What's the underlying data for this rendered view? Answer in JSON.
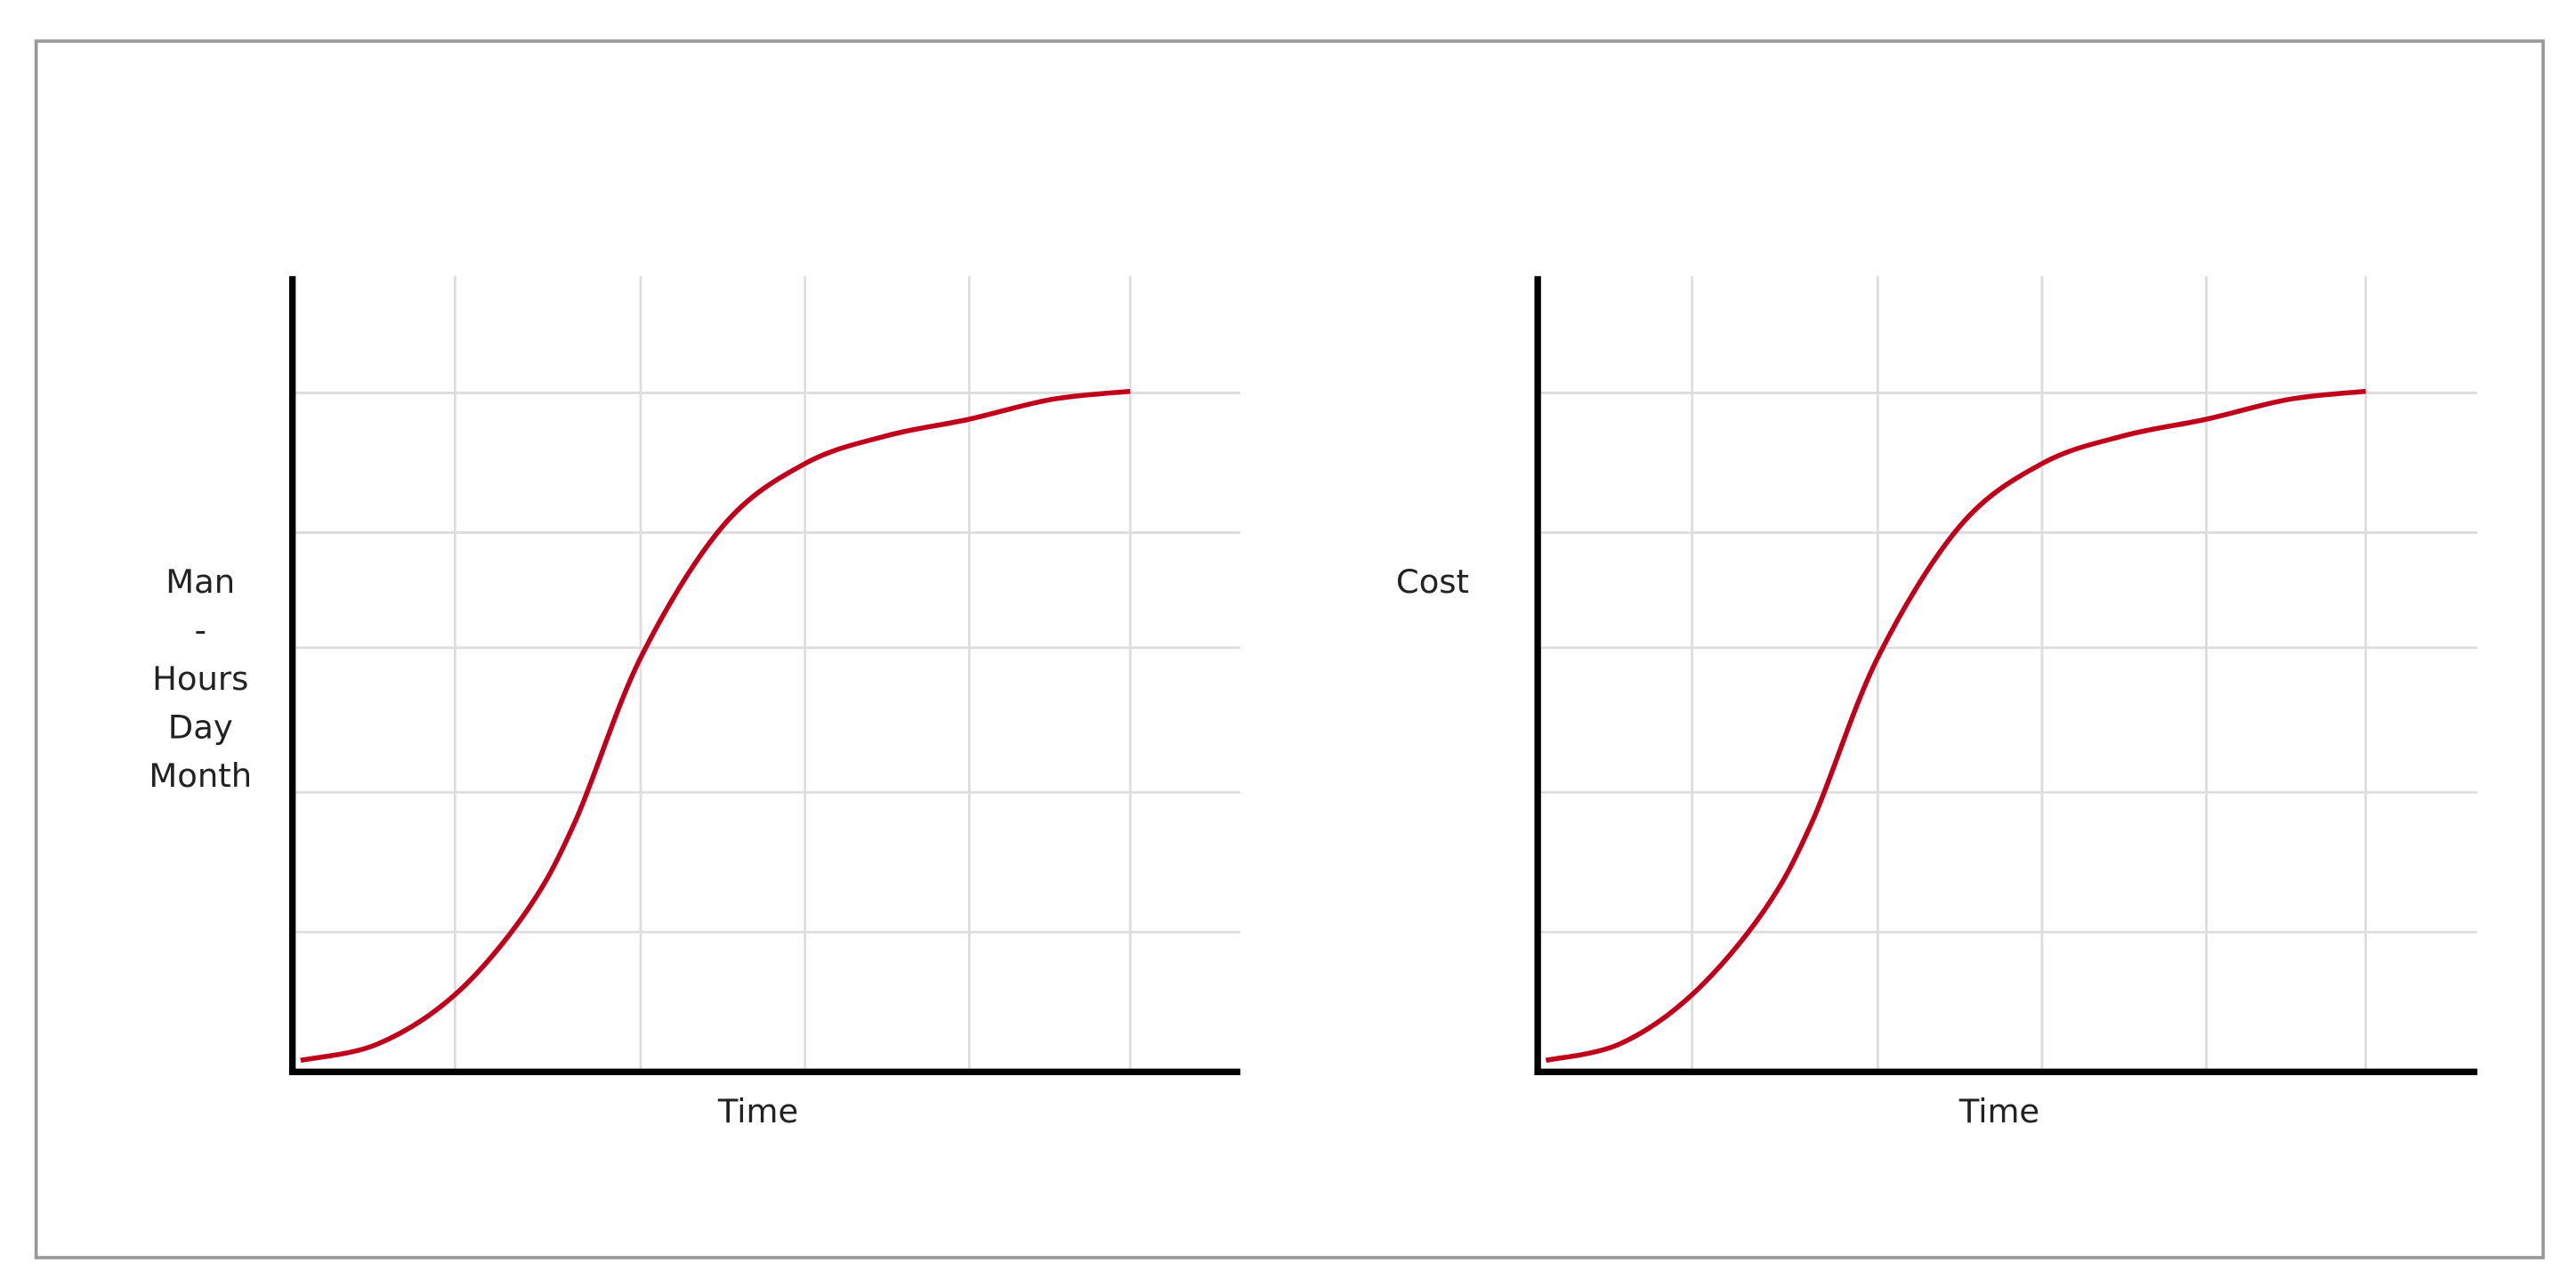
{
  "chart_data": [
    {
      "type": "line",
      "y_label": [
        "Man",
        "-",
        "Hours",
        "Day",
        "Month"
      ],
      "x_label": "Time",
      "x": [
        0.05,
        0.52,
        0.99,
        1.42,
        1.72,
        2.12,
        2.62,
        3.12,
        3.62,
        4.12,
        4.62,
        5.1
      ],
      "series": [
        {
          "color": "#c0001a",
          "values": [
            0.07,
            0.17,
            0.47,
            0.97,
            1.52,
            2.52,
            3.32,
            3.7,
            3.87,
            3.97,
            4.09,
            4.14
          ]
        }
      ],
      "xlim": [
        0,
        5.77
      ],
      "xticks": [
        0.99,
        2.12,
        3.12,
        4.12,
        5.1
      ],
      "ylim": [
        0,
        4.84
      ],
      "yticks": [
        0.85,
        1.7,
        2.58,
        3.28,
        4.13
      ],
      "grid": true
    },
    {
      "type": "line",
      "y_label": [
        "Cost"
      ],
      "x_label": "Time",
      "x": [
        0.05,
        0.5,
        0.94,
        1.37,
        1.67,
        2.07,
        2.57,
        3.07,
        3.57,
        4.07,
        4.57,
        5.04
      ],
      "series": [
        {
          "color": "#c0001a",
          "values": [
            0.07,
            0.17,
            0.47,
            0.97,
            1.52,
            2.52,
            3.32,
            3.7,
            3.87,
            3.97,
            4.09,
            4.14
          ]
        }
      ],
      "xlim": [
        0,
        5.72
      ],
      "xticks": [
        0.94,
        2.07,
        3.07,
        4.07,
        5.04
      ],
      "ylim": [
        0,
        4.84
      ],
      "yticks": [
        0.85,
        1.7,
        2.58,
        3.28,
        4.13
      ],
      "grid": true
    }
  ]
}
